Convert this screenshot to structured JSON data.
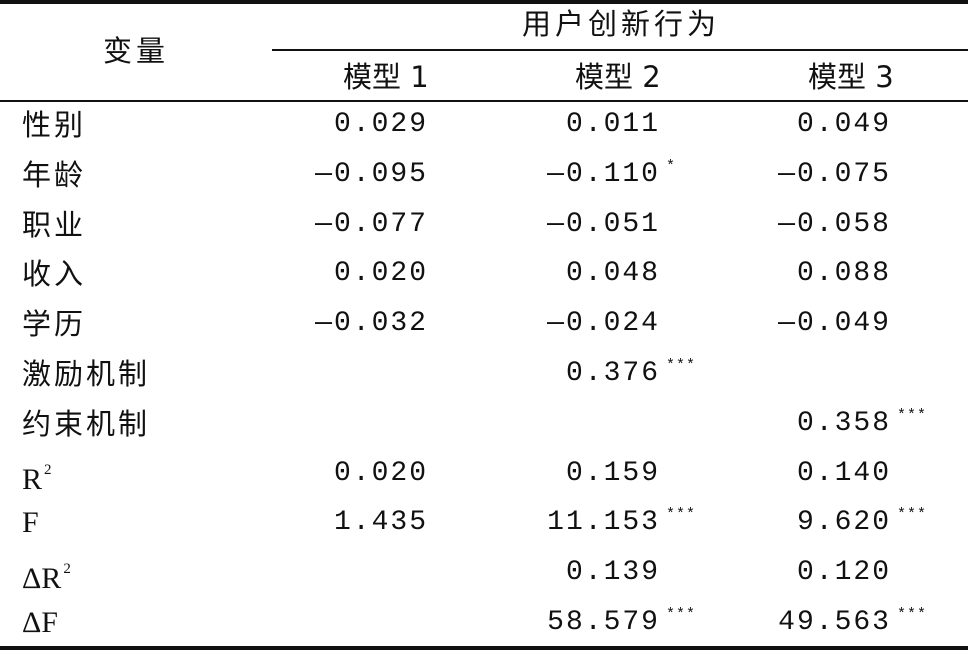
{
  "header": {
    "variable_label": "变量",
    "group_label": "用户创新行为",
    "models": [
      "模型 1",
      "模型 2",
      "模型 3"
    ]
  },
  "rows": [
    {
      "label": "性别",
      "m1": "0.029",
      "m1_sig": "",
      "m2": "0.011",
      "m2_sig": "",
      "m3": "0.049",
      "m3_sig": ""
    },
    {
      "label": "年龄",
      "m1": "—0.095",
      "m1_sig": "",
      "m2": "—0.110",
      "m2_sig": "*",
      "m3": "—0.075",
      "m3_sig": ""
    },
    {
      "label": "职业",
      "m1": "—0.077",
      "m1_sig": "",
      "m2": "—0.051",
      "m2_sig": "",
      "m3": "—0.058",
      "m3_sig": ""
    },
    {
      "label": "收入",
      "m1": "0.020",
      "m1_sig": "",
      "m2": "0.048",
      "m2_sig": "",
      "m3": "0.088",
      "m3_sig": ""
    },
    {
      "label": "学历",
      "m1": "—0.032",
      "m1_sig": "",
      "m2": "—0.024",
      "m2_sig": "",
      "m3": "—0.049",
      "m3_sig": ""
    },
    {
      "label": "激励机制",
      "m1": "",
      "m1_sig": "",
      "m2": "0.376",
      "m2_sig": "***",
      "m3": "",
      "m3_sig": ""
    },
    {
      "label": "约束机制",
      "m1": "",
      "m1_sig": "",
      "m2": "",
      "m2_sig": "",
      "m3": "0.358",
      "m3_sig": "***"
    },
    {
      "label": "R",
      "label_sup": "2",
      "m1": "0.020",
      "m1_sig": "",
      "m2": "0.159",
      "m2_sig": "",
      "m3": "0.140",
      "m3_sig": ""
    },
    {
      "label": "F",
      "m1": "1.435",
      "m1_sig": "",
      "m2": "11.153",
      "m2_sig": "***",
      "m3": "9.620",
      "m3_sig": "***"
    },
    {
      "label": "ΔR",
      "label_sup": "2",
      "m1": "",
      "m1_sig": "",
      "m2": "0.139",
      "m2_sig": "",
      "m3": "0.120",
      "m3_sig": ""
    },
    {
      "label": "ΔF",
      "m1": "",
      "m1_sig": "",
      "m2": "58.579",
      "m2_sig": "***",
      "m3": "49.563",
      "m3_sig": "***"
    }
  ]
}
